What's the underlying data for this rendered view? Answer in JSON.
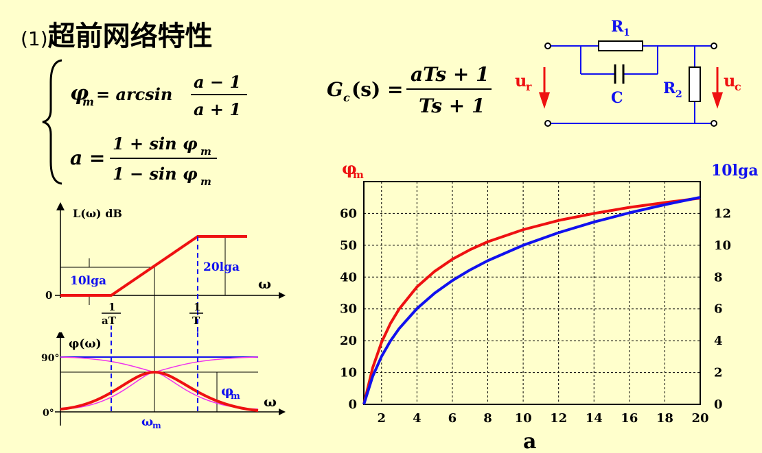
{
  "title": {
    "number": "(1)",
    "text": "超前网络特性"
  },
  "formulas": {
    "phi_lhs": "φ",
    "phi_sub": "m",
    "phi_eq": "= arcsin",
    "phi_num": "a − 1",
    "phi_den": "a + 1",
    "a_lhs": "a =",
    "a_num": "1 + sin φ",
    "a_num_sub": "m",
    "a_den": "1 − sin φ",
    "a_den_sub": "m",
    "gc_lhs": "G",
    "gc_sub": "c",
    "gc_arg": "(s) =",
    "gc_num": "aTs + 1",
    "gc_den": "Ts + 1"
  },
  "circuit": {
    "r1": "R",
    "r1_sub": "1",
    "r2": "R",
    "r2_sub": "2",
    "c": "C",
    "ur": "u",
    "ur_sub": "r",
    "uc": "u",
    "uc_sub": "c"
  },
  "bode_mag": {
    "ylabel": "L(ω) dB",
    "zero": "0",
    "level_label": "10lga",
    "gain_label": "20lga",
    "omega": "ω",
    "corner1_num": "1",
    "corner1_den": "aT",
    "corner2_num": "1",
    "corner2_den": "T"
  },
  "bode_phase": {
    "ylabel": "φ(ω)",
    "top_tick": "90°",
    "bottom_tick": "0°",
    "omega": "ω",
    "omega_m": "ω",
    "omega_m_sub": "m",
    "phi_m": "φ",
    "phi_m_sub": "m"
  },
  "colors": {
    "red": "#ee1111",
    "blue": "#1111ee",
    "magenta": "#ee33ee",
    "background": "#ffffcc"
  },
  "chart_data": {
    "type": "line",
    "xlabel": "a",
    "left_axis_label": "φ",
    "left_axis_sub": "m",
    "right_axis_label": "10lga",
    "xlim": [
      1,
      20
    ],
    "ylim_left": [
      0,
      70
    ],
    "ylim_right": [
      0,
      14
    ],
    "x_ticks": [
      "2",
      "4",
      "6",
      "8",
      "10",
      "12",
      "14",
      "16",
      "18",
      "20"
    ],
    "left_ticks": [
      "0",
      "10",
      "20",
      "30",
      "40",
      "50",
      "60"
    ],
    "right_ticks": [
      "0",
      "2",
      "4",
      "6",
      "8",
      "10",
      "12"
    ],
    "grid": true,
    "series": [
      {
        "color": "#ee1111",
        "axis": "left",
        "x": [
          1,
          1.5,
          2,
          2.5,
          3,
          4,
          5,
          6,
          7,
          8,
          10,
          12,
          14,
          16,
          18,
          20
        ],
        "values": [
          0,
          11.5,
          19.5,
          25.4,
          30.0,
          36.9,
          41.8,
          45.6,
          48.6,
          51.1,
          54.9,
          57.8,
          60.0,
          61.9,
          63.4,
          64.8
        ]
      },
      {
        "color": "#1111ee",
        "axis": "right",
        "x": [
          1,
          1.5,
          2,
          2.5,
          3,
          4,
          5,
          6,
          7,
          8,
          10,
          12,
          14,
          16,
          18,
          20
        ],
        "values": [
          0,
          1.76,
          3.01,
          3.98,
          4.77,
          6.02,
          6.99,
          7.78,
          8.45,
          9.03,
          10.0,
          10.79,
          11.46,
          12.04,
          12.55,
          13.01
        ]
      }
    ]
  }
}
